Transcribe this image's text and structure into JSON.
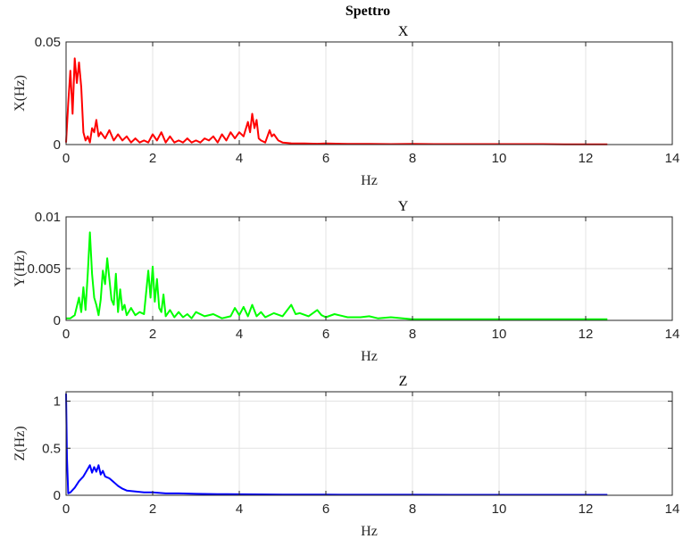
{
  "figure": {
    "title": "Spettro"
  },
  "chart_data": [
    {
      "type": "line",
      "title": "X",
      "xlabel": "Hz",
      "ylabel": "X(Hz)",
      "xlim": [
        0,
        14
      ],
      "ylim": [
        0,
        0.05
      ],
      "xticks": [
        0,
        2,
        4,
        6,
        8,
        10,
        12,
        14
      ],
      "xtick_labels": [
        "0",
        "2",
        "4",
        "6",
        "8",
        "10",
        "12",
        "14"
      ],
      "yticks": [
        0,
        0.05
      ],
      "ytick_labels": [
        "0",
        "0.05"
      ],
      "grid": true,
      "series": [
        {
          "color": "#ff0000",
          "x": [
            0,
            0.05,
            0.1,
            0.15,
            0.2,
            0.25,
            0.3,
            0.35,
            0.4,
            0.45,
            0.5,
            0.55,
            0.6,
            0.65,
            0.7,
            0.75,
            0.8,
            0.9,
            1.0,
            1.1,
            1.2,
            1.3,
            1.4,
            1.5,
            1.6,
            1.7,
            1.8,
            1.9,
            2.0,
            2.1,
            2.2,
            2.3,
            2.4,
            2.5,
            2.6,
            2.7,
            2.8,
            2.9,
            3.0,
            3.1,
            3.2,
            3.3,
            3.4,
            3.5,
            3.6,
            3.7,
            3.8,
            3.9,
            4.0,
            4.1,
            4.2,
            4.25,
            4.3,
            4.35,
            4.4,
            4.45,
            4.5,
            4.6,
            4.7,
            4.75,
            4.8,
            4.9,
            5.0,
            5.2,
            5.5,
            5.8,
            6.0,
            6.5,
            7.0,
            7.5,
            8.0,
            8.5,
            9.0,
            9.5,
            10.0,
            10.5,
            11.0,
            11.5,
            12.0,
            12.5
          ],
          "y": [
            0.001,
            0.02,
            0.036,
            0.015,
            0.042,
            0.03,
            0.04,
            0.028,
            0.006,
            0.002,
            0.004,
            0.001,
            0.008,
            0.006,
            0.012,
            0.004,
            0.006,
            0.003,
            0.007,
            0.002,
            0.005,
            0.002,
            0.004,
            0.001,
            0.003,
            0.001,
            0.002,
            0.001,
            0.005,
            0.002,
            0.006,
            0.001,
            0.004,
            0.001,
            0.002,
            0.001,
            0.003,
            0.001,
            0.002,
            0.001,
            0.003,
            0.002,
            0.004,
            0.001,
            0.005,
            0.002,
            0.006,
            0.003,
            0.006,
            0.004,
            0.011,
            0.006,
            0.015,
            0.008,
            0.012,
            0.003,
            0.002,
            0.001,
            0.007,
            0.004,
            0.005,
            0.002,
            0.001,
            0.0006,
            0.0005,
            0.0004,
            0.0005,
            0.0003,
            0.0003,
            0.0002,
            0.0003,
            0.0002,
            0.0002,
            0.0002,
            0.0002,
            0.0002,
            0.0002,
            0.0001,
            0.0001,
            0.0001
          ]
        }
      ]
    },
    {
      "type": "line",
      "title": "Y",
      "xlabel": "Hz",
      "ylabel": "Y(Hz)",
      "xlim": [
        0,
        14
      ],
      "ylim": [
        0,
        0.01
      ],
      "xticks": [
        0,
        2,
        4,
        6,
        8,
        10,
        12,
        14
      ],
      "xtick_labels": [
        "0",
        "2",
        "4",
        "6",
        "8",
        "10",
        "12",
        "14"
      ],
      "yticks": [
        0,
        0.005,
        0.01
      ],
      "ytick_labels": [
        "0",
        "0.005",
        "0.01"
      ],
      "grid": true,
      "series": [
        {
          "color": "#00ff00",
          "x": [
            0,
            0.1,
            0.2,
            0.3,
            0.35,
            0.4,
            0.45,
            0.5,
            0.55,
            0.6,
            0.65,
            0.7,
            0.75,
            0.8,
            0.85,
            0.9,
            0.95,
            1.0,
            1.05,
            1.1,
            1.15,
            1.2,
            1.25,
            1.3,
            1.35,
            1.4,
            1.5,
            1.6,
            1.7,
            1.8,
            1.9,
            1.95,
            2.0,
            2.05,
            2.1,
            2.15,
            2.2,
            2.25,
            2.3,
            2.4,
            2.5,
            2.6,
            2.7,
            2.8,
            2.9,
            3.0,
            3.2,
            3.4,
            3.6,
            3.8,
            3.9,
            4.0,
            4.1,
            4.2,
            4.3,
            4.4,
            4.5,
            4.6,
            4.8,
            5.0,
            5.2,
            5.3,
            5.4,
            5.6,
            5.8,
            5.9,
            6.0,
            6.2,
            6.5,
            6.8,
            7.0,
            7.2,
            7.5,
            8.0,
            8.5,
            9.0,
            9.5,
            10.0,
            10.5,
            11.0,
            11.5,
            12.0,
            12.5
          ],
          "y": [
            0.0002,
            0.0002,
            0.0005,
            0.0022,
            0.0008,
            0.0032,
            0.001,
            0.0045,
            0.0085,
            0.0045,
            0.0022,
            0.0015,
            0.0005,
            0.002,
            0.0048,
            0.0035,
            0.006,
            0.004,
            0.002,
            0.0015,
            0.0045,
            0.0008,
            0.003,
            0.001,
            0.0015,
            0.0005,
            0.0012,
            0.0005,
            0.0008,
            0.0006,
            0.0048,
            0.0022,
            0.0052,
            0.0018,
            0.004,
            0.0012,
            0.0008,
            0.0025,
            0.0004,
            0.001,
            0.0003,
            0.0008,
            0.0003,
            0.0006,
            0.0002,
            0.0008,
            0.0004,
            0.0006,
            0.0002,
            0.0004,
            0.0012,
            0.0005,
            0.0013,
            0.0004,
            0.0015,
            0.0004,
            0.0008,
            0.0003,
            0.0007,
            0.0004,
            0.0015,
            0.0006,
            0.0007,
            0.0004,
            0.001,
            0.0005,
            0.0003,
            0.0006,
            0.0003,
            0.0003,
            0.0004,
            0.0002,
            0.0003,
            0.0001,
            0.0001,
            0.0001,
            0.0001,
            0.0001,
            0.0001,
            0.0001,
            0.0001,
            0.0001,
            0.0001
          ]
        }
      ]
    },
    {
      "type": "line",
      "title": "Z",
      "xlabel": "Hz",
      "ylabel": "Z(Hz)",
      "xlim": [
        0,
        14
      ],
      "ylim": [
        0,
        1.1
      ],
      "xticks": [
        0,
        2,
        4,
        6,
        8,
        10,
        12,
        14
      ],
      "xtick_labels": [
        "0",
        "2",
        "4",
        "6",
        "8",
        "10",
        "12",
        "14"
      ],
      "yticks": [
        0,
        0.5,
        1
      ],
      "ytick_labels": [
        "0",
        "0.5",
        "1"
      ],
      "grid": true,
      "series": [
        {
          "color": "#0000ff",
          "x": [
            0,
            0.02,
            0.05,
            0.1,
            0.2,
            0.3,
            0.4,
            0.5,
            0.55,
            0.6,
            0.65,
            0.7,
            0.75,
            0.8,
            0.85,
            0.9,
            1.0,
            1.1,
            1.2,
            1.3,
            1.4,
            1.6,
            1.8,
            2.0,
            2.3,
            2.6,
            3.0,
            3.5,
            4.0,
            5.0,
            6.0,
            7.0,
            8.0,
            9.0,
            10.0,
            11.0,
            12.0,
            12.5
          ],
          "y": [
            1.08,
            0.4,
            0.02,
            0.03,
            0.08,
            0.15,
            0.2,
            0.28,
            0.32,
            0.24,
            0.3,
            0.25,
            0.32,
            0.22,
            0.26,
            0.2,
            0.18,
            0.14,
            0.1,
            0.07,
            0.05,
            0.04,
            0.03,
            0.03,
            0.02,
            0.02,
            0.015,
            0.012,
            0.01,
            0.008,
            0.007,
            0.006,
            0.006,
            0.005,
            0.005,
            0.005,
            0.005,
            0.005
          ]
        }
      ]
    }
  ]
}
